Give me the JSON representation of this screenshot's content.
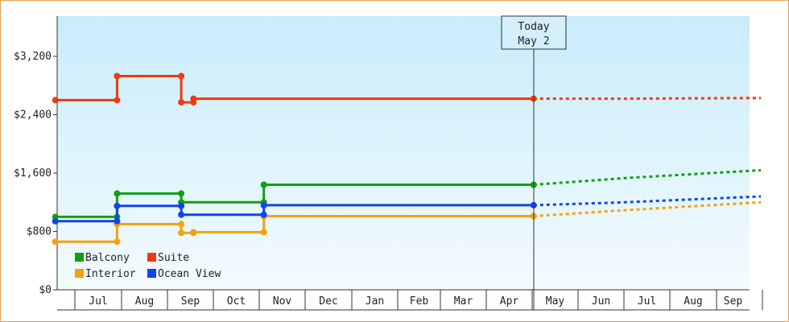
{
  "chart_data": {
    "type": "line",
    "step": true,
    "today_label": [
      "Today",
      "May 2"
    ],
    "months": [
      "Jul",
      "Aug",
      "Sep",
      "Oct",
      "Nov",
      "Dec",
      "Jan",
      "Feb",
      "Mar",
      "Apr",
      "May",
      "Jun",
      "Jul",
      "Aug",
      "Sep"
    ],
    "yticks": [
      "$0",
      "$800",
      "$1,600",
      "$2,400",
      "$3,200"
    ],
    "ylim": [
      0,
      3200
    ],
    "grid": false,
    "legend_position": "bottom-left",
    "series": [
      {
        "name": "Balcony",
        "color": "#11a011",
        "points": [
          [
            "2024-06-18",
            1000
          ],
          [
            "2024-07-29",
            1000
          ],
          [
            "2024-07-29",
            1320
          ],
          [
            "2024-09-10",
            1320
          ],
          [
            "2024-09-10",
            1200
          ],
          [
            "2024-11-04",
            1200
          ],
          [
            "2024-11-04",
            1440
          ],
          [
            "2025-05-02",
            1440
          ]
        ],
        "forecast": [
          [
            "2025-05-02",
            1440
          ],
          [
            "2025-07-01",
            1530
          ],
          [
            "2025-09-30",
            1640
          ]
        ]
      },
      {
        "name": "Suite",
        "color": "#ee3a0e",
        "points": [
          [
            "2024-06-18",
            2600
          ],
          [
            "2024-07-29",
            2600
          ],
          [
            "2024-07-29",
            2930
          ],
          [
            "2024-09-10",
            2930
          ],
          [
            "2024-09-10",
            2570
          ],
          [
            "2024-09-18",
            2570
          ],
          [
            "2024-09-18",
            2620
          ],
          [
            "2025-05-02",
            2620
          ]
        ],
        "forecast": [
          [
            "2025-05-02",
            2620
          ],
          [
            "2025-07-01",
            2620
          ],
          [
            "2025-09-30",
            2630
          ]
        ]
      },
      {
        "name": "Interior",
        "color": "#f5a10f",
        "points": [
          [
            "2024-06-18",
            660
          ],
          [
            "2024-07-29",
            660
          ],
          [
            "2024-07-29",
            900
          ],
          [
            "2024-09-10",
            900
          ],
          [
            "2024-09-10",
            780
          ],
          [
            "2024-09-18",
            780
          ],
          [
            "2024-09-18",
            790
          ],
          [
            "2024-11-04",
            790
          ],
          [
            "2024-11-04",
            1010
          ],
          [
            "2025-05-02",
            1010
          ]
        ],
        "forecast": [
          [
            "2025-05-02",
            1010
          ],
          [
            "2025-07-01",
            1090
          ],
          [
            "2025-09-30",
            1200
          ]
        ]
      },
      {
        "name": "Ocean View",
        "color": "#1144ee",
        "points": [
          [
            "2024-06-18",
            940
          ],
          [
            "2024-07-29",
            940
          ],
          [
            "2024-07-29",
            1150
          ],
          [
            "2024-09-10",
            1150
          ],
          [
            "2024-09-10",
            1030
          ],
          [
            "2024-11-04",
            1030
          ],
          [
            "2024-11-04",
            1160
          ],
          [
            "2025-05-02",
            1160
          ]
        ],
        "forecast": [
          [
            "2025-05-02",
            1160
          ],
          [
            "2025-07-01",
            1200
          ],
          [
            "2025-09-30",
            1280
          ]
        ]
      }
    ]
  }
}
